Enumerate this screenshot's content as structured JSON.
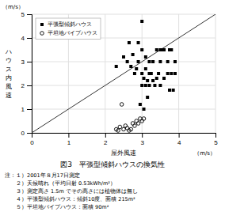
{
  "chart_data": {
    "type": "scatter",
    "title": "図3　平張型傾斜ハウスの換気性",
    "annotations": [
      "注：１）2001年８月17日測定",
      "　　２）天候晴れ（平均日射 0.53kWh/m²）",
      "　　３）測定高さ 1.5m でその高さには植物体は無し",
      "　　４）平張型傾斜ハウス：傾斜10度、面積 215m²",
      "　　５）平坦地パイプハウス：面積 90m²"
    ],
    "xlabel": "屋外風速",
    "xlabel_unit": "（m/s）",
    "ylabel": "ハウス内風速",
    "ylabel_unit": "（m/s）",
    "xlim": [
      0,
      5
    ],
    "ylim": [
      0,
      5
    ],
    "xticks": [
      0,
      1,
      2,
      3,
      4,
      5
    ],
    "yticks": [
      0,
      1,
      2,
      3,
      4,
      5
    ],
    "grid": true,
    "legend": "top-left",
    "diagonal": {
      "x": [
        0,
        5
      ],
      "values": [
        0,
        5
      ]
    },
    "series": [
      {
        "name": "平張型傾斜ハウス",
        "color": "#000000",
        "marker": "square",
        "x": [
          2.3,
          2.5,
          2.6,
          2.7,
          2.75,
          2.8,
          2.85,
          2.9,
          2.9,
          3.0,
          3.0,
          3.0,
          3.05,
          3.1,
          3.1,
          3.1,
          3.15,
          3.2,
          3.2,
          3.2,
          3.25,
          3.3,
          3.3,
          3.35,
          3.4,
          3.4,
          3.45,
          3.5,
          3.5,
          3.55,
          3.6,
          3.6,
          3.7,
          3.7,
          3.75,
          3.8,
          3.8,
          3.85,
          3.9,
          3.9,
          2.65,
          3.0,
          3.5,
          3.55,
          3.75,
          2.95,
          3.15,
          3.05
        ],
        "values": [
          2.8,
          3.2,
          3.0,
          2.8,
          3.3,
          2.5,
          2.7,
          3.0,
          3.8,
          2.0,
          2.5,
          3.5,
          2.3,
          2.0,
          2.7,
          3.2,
          2.2,
          2.0,
          2.5,
          3.0,
          2.5,
          2.2,
          3.0,
          2.0,
          2.3,
          3.5,
          2.5,
          2.0,
          3.0,
          3.5,
          2.3,
          3.5,
          2.5,
          3.0,
          3.5,
          2.5,
          3.5,
          1.8,
          2.5,
          3.0,
          3.8,
          4.7,
          3.5,
          3.5,
          1.8,
          1.2,
          1.5,
          1.0
        ]
      },
      {
        "name": "平坦地パイプハウス",
        "color": "#000000",
        "marker": "open-circle",
        "x": [
          2.3,
          2.35,
          2.4,
          2.5,
          2.55,
          2.6,
          2.65,
          2.7,
          2.75,
          2.8,
          2.85,
          2.9,
          2.95,
          3.0,
          3.05,
          2.45
        ],
        "values": [
          0.15,
          0.1,
          0.25,
          0.15,
          0.3,
          0.2,
          0.1,
          0.15,
          0.4,
          0.3,
          0.5,
          0.4,
          0.6,
          0.5,
          0.6,
          1.2
        ]
      }
    ]
  }
}
